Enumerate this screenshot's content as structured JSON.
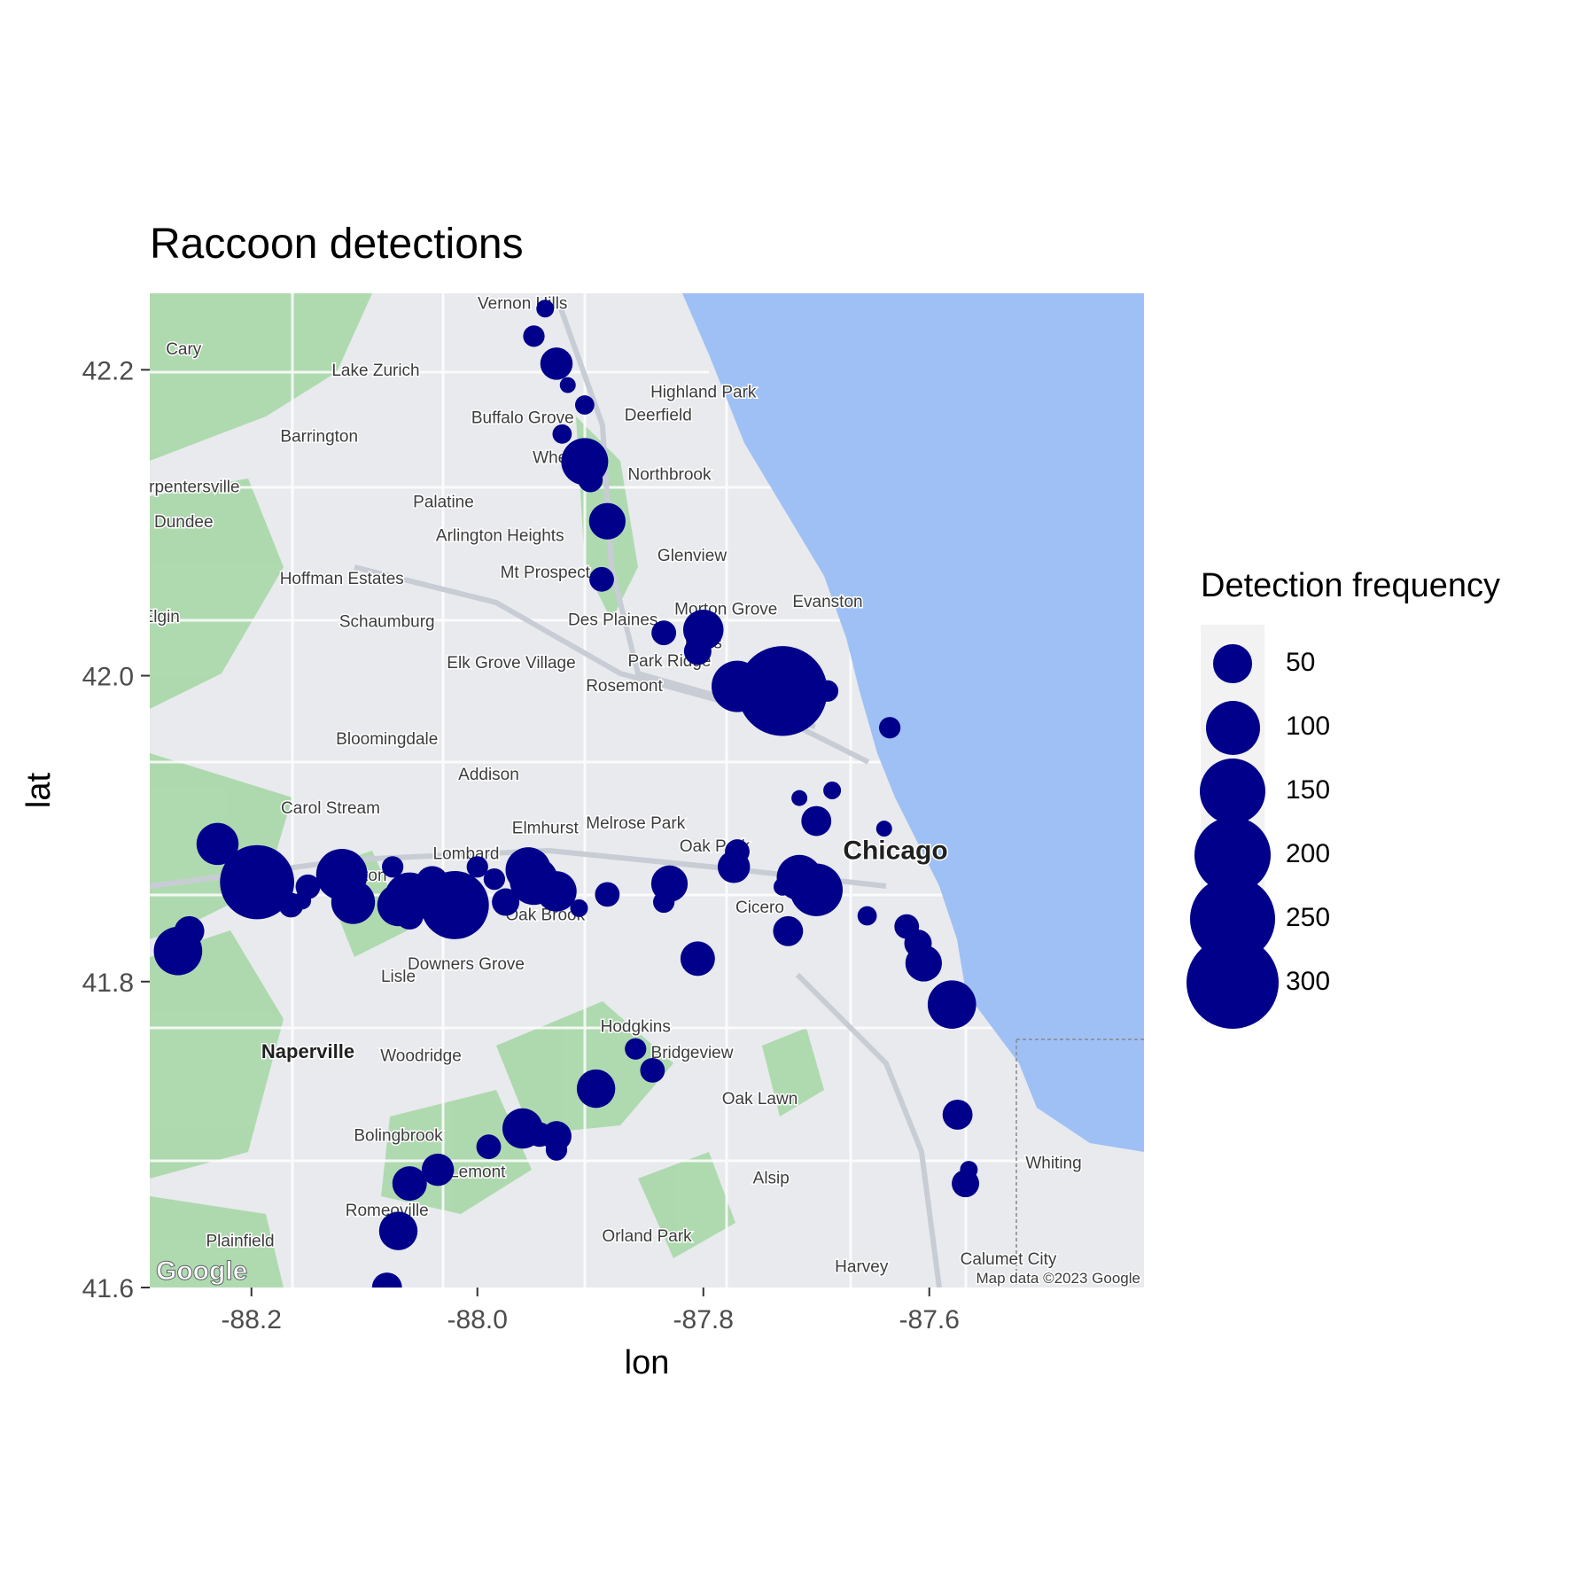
{
  "chart_data": {
    "type": "scatter",
    "title": "Raccoon detections",
    "xlabel": "lon",
    "ylabel": "lat",
    "xlim": [
      -88.29,
      -87.41
    ],
    "ylim": [
      41.6,
      42.25
    ],
    "x_ticks": [
      "-88.2",
      "-88.0",
      "-87.8",
      "-87.6"
    ],
    "y_ticks": [
      "42.2",
      "42.0",
      "41.8",
      "41.6"
    ],
    "legend": {
      "title": "Detection frequency",
      "placement": "right",
      "entries": [
        "50",
        "100",
        "150",
        "200",
        "250",
        "300"
      ]
    },
    "point_color": "#00008b",
    "basemap": {
      "attribution": "Map data ©2023 Google",
      "logo": "Google",
      "water_color": "#9fc0f5",
      "land_color": "#e8eaed",
      "park_color": "#a8d8a8",
      "places": [
        {
          "name": "Vernon Hills",
          "lon": -87.96,
          "lat": 42.24
        },
        {
          "name": "Cary",
          "lon": -88.26,
          "lat": 42.21
        },
        {
          "name": "Lake Zurich",
          "lon": -88.09,
          "lat": 42.196
        },
        {
          "name": "Highland Park",
          "lon": -87.8,
          "lat": 42.182
        },
        {
          "name": "Deerfield",
          "lon": -87.84,
          "lat": 42.167
        },
        {
          "name": "Buffalo Grove",
          "lon": -87.96,
          "lat": 42.165
        },
        {
          "name": "Barrington",
          "lon": -88.14,
          "lat": 42.153
        },
        {
          "name": "Wheeling",
          "lon": -87.92,
          "lat": 42.139
        },
        {
          "name": "Northbrook",
          "lon": -87.83,
          "lat": 42.128
        },
        {
          "name": "Carpentersville",
          "lon": -88.26,
          "lat": 42.12
        },
        {
          "name": "Palatine",
          "lon": -88.03,
          "lat": 42.11
        },
        {
          "name": "Arlington Heights",
          "lon": -87.98,
          "lat": 42.088
        },
        {
          "name": "Dundee",
          "lon": -88.26,
          "lat": 42.097
        },
        {
          "name": "Glenview",
          "lon": -87.81,
          "lat": 42.075
        },
        {
          "name": "Hoffman Estates",
          "lon": -88.12,
          "lat": 42.06
        },
        {
          "name": "Mt Prospect",
          "lon": -87.94,
          "lat": 42.064
        },
        {
          "name": "Morton Grove",
          "lon": -87.78,
          "lat": 42.04
        },
        {
          "name": "Evanston",
          "lon": -87.69,
          "lat": 42.045
        },
        {
          "name": "Elgin",
          "lon": -88.28,
          "lat": 42.035
        },
        {
          "name": "Schaumburg",
          "lon": -88.08,
          "lat": 42.032
        },
        {
          "name": "Des Plaines",
          "lon": -87.88,
          "lat": 42.033
        },
        {
          "name": "Niles",
          "lon": -87.8,
          "lat": 42.018
        },
        {
          "name": "Elk Grove Village",
          "lon": -87.97,
          "lat": 42.005
        },
        {
          "name": "Park Ridge",
          "lon": -87.83,
          "lat": 42.006
        },
        {
          "name": "Rosemont",
          "lon": -87.87,
          "lat": 41.99
        },
        {
          "name": "Bloomingdale",
          "lon": -88.08,
          "lat": 41.955
        },
        {
          "name": "Addison",
          "lon": -87.99,
          "lat": 41.932
        },
        {
          "name": "Carol Stream",
          "lon": -88.13,
          "lat": 41.91
        },
        {
          "name": "Elmhurst",
          "lon": -87.94,
          "lat": 41.897
        },
        {
          "name": "Melrose Park",
          "lon": -87.86,
          "lat": 41.9
        },
        {
          "name": "Oak Park",
          "lon": -87.79,
          "lat": 41.885
        },
        {
          "name": "Lombard",
          "lon": -88.01,
          "lat": 41.88
        },
        {
          "name": "Chicago",
          "lon": -87.63,
          "lat": 41.88
        },
        {
          "name": "Wheaton",
          "lon": -88.11,
          "lat": 41.866
        },
        {
          "name": "Cicero",
          "lon": -87.75,
          "lat": 41.845
        },
        {
          "name": "Oak Brook",
          "lon": -87.94,
          "lat": 41.84
        },
        {
          "name": "Downers Grove",
          "lon": -88.01,
          "lat": 41.808
        },
        {
          "name": "Lisle",
          "lon": -88.07,
          "lat": 41.8
        },
        {
          "name": "Hodgkins",
          "lon": -87.86,
          "lat": 41.767
        },
        {
          "name": "Naperville",
          "lon": -88.15,
          "lat": 41.75
        },
        {
          "name": "Woodridge",
          "lon": -88.05,
          "lat": 41.748
        },
        {
          "name": "Bridgeview",
          "lon": -87.81,
          "lat": 41.75
        },
        {
          "name": "Oak Lawn",
          "lon": -87.75,
          "lat": 41.72
        },
        {
          "name": "Bolingbrook",
          "lon": -88.07,
          "lat": 41.696
        },
        {
          "name": "Whiting",
          "lon": -87.49,
          "lat": 41.678
        },
        {
          "name": "Lemont",
          "lon": -88.0,
          "lat": 41.672
        },
        {
          "name": "Alsip",
          "lon": -87.74,
          "lat": 41.668
        },
        {
          "name": "Romeoville",
          "lon": -88.08,
          "lat": 41.647
        },
        {
          "name": "Plainfield",
          "lon": -88.21,
          "lat": 41.627
        },
        {
          "name": "Orland Park",
          "lon": -87.85,
          "lat": 41.63
        },
        {
          "name": "Harvey",
          "lon": -87.66,
          "lat": 41.61
        },
        {
          "name": "Calumet City",
          "lon": -87.53,
          "lat": 41.615
        }
      ]
    },
    "points": [
      {
        "lon": -87.94,
        "lat": 42.24,
        "freq": 10
      },
      {
        "lon": -87.95,
        "lat": 42.222,
        "freq": 15
      },
      {
        "lon": -87.93,
        "lat": 42.204,
        "freq": 35
      },
      {
        "lon": -87.92,
        "lat": 42.19,
        "freq": 8
      },
      {
        "lon": -87.905,
        "lat": 42.177,
        "freq": 12
      },
      {
        "lon": -87.925,
        "lat": 42.158,
        "freq": 12
      },
      {
        "lon": -87.905,
        "lat": 42.14,
        "freq": 75
      },
      {
        "lon": -87.9,
        "lat": 42.128,
        "freq": 20
      },
      {
        "lon": -87.885,
        "lat": 42.101,
        "freq": 45
      },
      {
        "lon": -87.89,
        "lat": 42.063,
        "freq": 20
      },
      {
        "lon": -87.835,
        "lat": 42.028,
        "freq": 20
      },
      {
        "lon": -87.8,
        "lat": 42.03,
        "freq": 55
      },
      {
        "lon": -87.805,
        "lat": 42.016,
        "freq": 25
      },
      {
        "lon": -87.77,
        "lat": 41.993,
        "freq": 90
      },
      {
        "lon": -87.73,
        "lat": 41.99,
        "freq": 280
      },
      {
        "lon": -87.69,
        "lat": 41.99,
        "freq": 15
      },
      {
        "lon": -87.635,
        "lat": 41.966,
        "freq": 15
      },
      {
        "lon": -87.715,
        "lat": 41.92,
        "freq": 8
      },
      {
        "lon": -87.686,
        "lat": 41.925,
        "freq": 10
      },
      {
        "lon": -87.7,
        "lat": 41.905,
        "freq": 30
      },
      {
        "lon": -87.64,
        "lat": 41.9,
        "freq": 8
      },
      {
        "lon": -88.23,
        "lat": 41.89,
        "freq": 60
      },
      {
        "lon": -88.195,
        "lat": 41.865,
        "freq": 190
      },
      {
        "lon": -88.165,
        "lat": 41.85,
        "freq": 20
      },
      {
        "lon": -88.155,
        "lat": 41.853,
        "freq": 10
      },
      {
        "lon": -88.15,
        "lat": 41.862,
        "freq": 20
      },
      {
        "lon": -88.12,
        "lat": 41.87,
        "freq": 90
      },
      {
        "lon": -88.11,
        "lat": 41.852,
        "freq": 65
      },
      {
        "lon": -88.075,
        "lat": 41.875,
        "freq": 15
      },
      {
        "lon": -88.07,
        "lat": 41.85,
        "freq": 60
      },
      {
        "lon": -88.06,
        "lat": 41.855,
        "freq": 85
      },
      {
        "lon": -88.06,
        "lat": 41.843,
        "freq": 25
      },
      {
        "lon": -88.04,
        "lat": 41.865,
        "freq": 35
      },
      {
        "lon": -88.02,
        "lat": 41.85,
        "freq": 160
      },
      {
        "lon": -88.0,
        "lat": 41.875,
        "freq": 15
      },
      {
        "lon": -87.985,
        "lat": 41.867,
        "freq": 15
      },
      {
        "lon": -87.975,
        "lat": 41.852,
        "freq": 25
      },
      {
        "lon": -87.955,
        "lat": 41.873,
        "freq": 70
      },
      {
        "lon": -87.95,
        "lat": 41.866,
        "freq": 80
      },
      {
        "lon": -87.93,
        "lat": 41.859,
        "freq": 55
      },
      {
        "lon": -87.91,
        "lat": 41.848,
        "freq": 10
      },
      {
        "lon": -87.885,
        "lat": 41.857,
        "freq": 20
      },
      {
        "lon": -87.83,
        "lat": 41.864,
        "freq": 45
      },
      {
        "lon": -87.835,
        "lat": 41.852,
        "freq": 15
      },
      {
        "lon": -87.77,
        "lat": 41.885,
        "freq": 20
      },
      {
        "lon": -87.773,
        "lat": 41.875,
        "freq": 35
      },
      {
        "lon": -87.73,
        "lat": 41.862,
        "freq": 10
      },
      {
        "lon": -87.715,
        "lat": 41.868,
        "freq": 70
      },
      {
        "lon": -87.7,
        "lat": 41.86,
        "freq": 95
      },
      {
        "lon": -87.655,
        "lat": 41.843,
        "freq": 12
      },
      {
        "lon": -87.62,
        "lat": 41.836,
        "freq": 20
      },
      {
        "lon": -87.61,
        "lat": 41.825,
        "freq": 25
      },
      {
        "lon": -87.605,
        "lat": 41.812,
        "freq": 45
      },
      {
        "lon": -87.58,
        "lat": 41.785,
        "freq": 80
      },
      {
        "lon": -87.725,
        "lat": 41.833,
        "freq": 30
      },
      {
        "lon": -87.805,
        "lat": 41.815,
        "freq": 40
      },
      {
        "lon": -88.255,
        "lat": 41.833,
        "freq": 30
      },
      {
        "lon": -88.265,
        "lat": 41.82,
        "freq": 80
      },
      {
        "lon": -87.86,
        "lat": 41.756,
        "freq": 15
      },
      {
        "lon": -87.845,
        "lat": 41.742,
        "freq": 20
      },
      {
        "lon": -87.895,
        "lat": 41.73,
        "freq": 50
      },
      {
        "lon": -87.575,
        "lat": 41.713,
        "freq": 30
      },
      {
        "lon": -87.96,
        "lat": 41.704,
        "freq": 55
      },
      {
        "lon": -87.945,
        "lat": 41.7,
        "freq": 20
      },
      {
        "lon": -87.93,
        "lat": 41.699,
        "freq": 30
      },
      {
        "lon": -87.93,
        "lat": 41.69,
        "freq": 15
      },
      {
        "lon": -87.99,
        "lat": 41.692,
        "freq": 20
      },
      {
        "lon": -88.035,
        "lat": 41.677,
        "freq": 35
      },
      {
        "lon": -88.06,
        "lat": 41.668,
        "freq": 40
      },
      {
        "lon": -87.565,
        "lat": 41.677,
        "freq": 10
      },
      {
        "lon": -87.568,
        "lat": 41.668,
        "freq": 25
      },
      {
        "lon": -88.07,
        "lat": 41.637,
        "freq": 50
      },
      {
        "lon": -88.08,
        "lat": 41.6,
        "freq": 30
      }
    ]
  }
}
